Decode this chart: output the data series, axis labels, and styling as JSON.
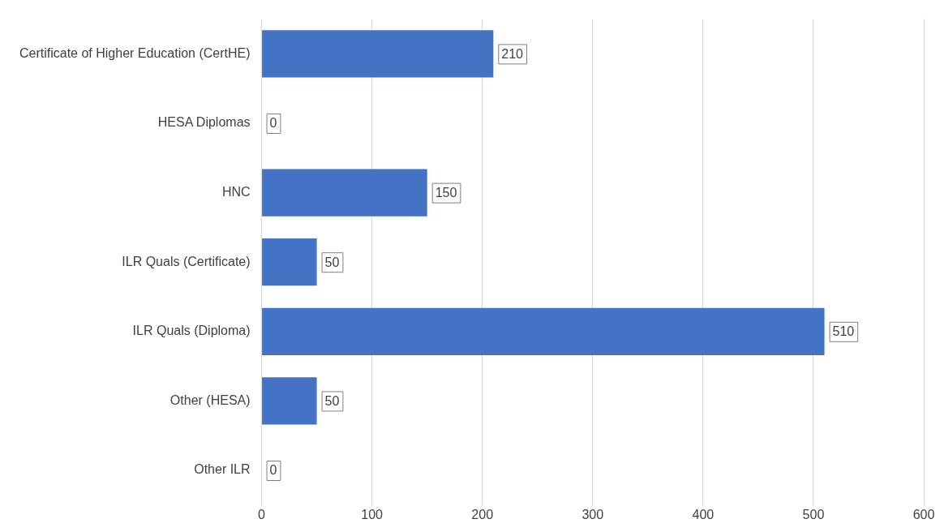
{
  "chart_data": {
    "type": "bar",
    "orientation": "horizontal",
    "categories": [
      "Certificate of Higher Education (CertHE)",
      "HESA Diplomas",
      "HNC",
      "ILR Quals (Certificate)",
      "ILR Quals (Diploma)",
      "Other (HESA)",
      "Other ILR"
    ],
    "values": [
      210,
      0,
      150,
      50,
      510,
      50,
      0
    ],
    "color": "#4472c4",
    "xlim": [
      0,
      600
    ],
    "xticks": [
      0,
      100,
      200,
      300,
      400,
      500,
      600
    ],
    "grid": "x",
    "legend": false,
    "data_labels": true
  }
}
